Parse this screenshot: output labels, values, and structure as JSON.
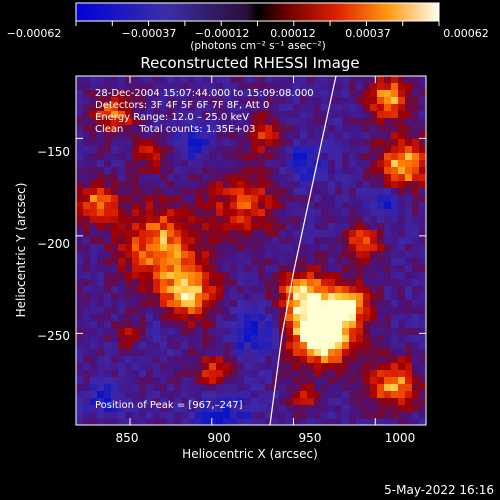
{
  "colorbar": {
    "tick_labels": [
      "−0.00062",
      "−0.00037",
      "−0.00012",
      "0.00012",
      "0.00037",
      "0.00062"
    ],
    "units_label": "(photons cm⁻² s⁻¹ asec⁻²)",
    "range": [
      -0.00062,
      0.00062
    ]
  },
  "plot": {
    "title": "Reconstructed RHESSI Image",
    "info_lines": [
      "28-Dec-2004 15:07:44.000 to 15:09:08.000",
      "Detectors: 3F 4F 5F 6F 7F 8F, Att 0",
      "Energy Range: 12.0 – 25.0 keV",
      "Clean     Total counts: 1.35E+03"
    ],
    "peak_label": "Position of Peak = [967,–247]",
    "xlabel": "Heliocentric X (arcsec)",
    "ylabel": "Heliocentric Y (arcsec)",
    "x_ticks": [
      "850",
      "900",
      "950",
      "1000"
    ],
    "y_ticks": [
      "−150",
      "−200",
      "−250"
    ],
    "x_range": [
      817,
      1031
    ],
    "y_range": [
      -297,
      -118
    ],
    "x_tick_values": [
      850,
      900,
      950,
      1000
    ],
    "y_tick_values": [
      -150,
      -200,
      -250
    ]
  },
  "footer": {
    "date_label": "5-May-2022 16:16"
  },
  "colors": {
    "background": "#000000",
    "foreground": "#ffffff"
  }
}
